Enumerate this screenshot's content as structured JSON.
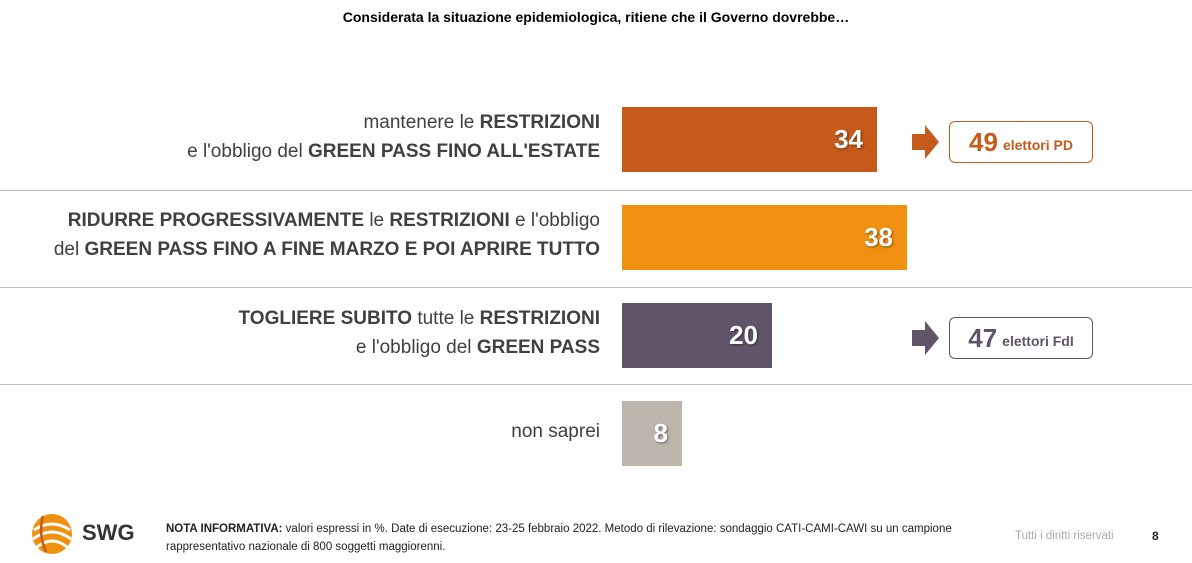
{
  "header": {
    "title": "Considerata la situazione epidemiologica, ritiene che il Governo dovrebbe…"
  },
  "chart_data": {
    "type": "bar",
    "orientation": "horizontal",
    "title": "Considerata la situazione epidemiologica, ritiene che il Governo dovrebbe…",
    "xlim": [
      0,
      100
    ],
    "grid": false,
    "categories": [
      "mantenere le RESTRIZIONI e l'obbligo del GREEN PASS FINO ALL'ESTATE",
      "RIDURRE PROGRESSIVAMENTE le RESTRIZIONI e l'obbligo del GREEN PASS FINO A FINE MARZO E POI APRIRE TUTTO",
      "TOGLIERE SUBITO tutte le RESTRIZIONI e l'obbligo del GREEN PASS",
      "non saprei"
    ],
    "values": [
      34,
      38,
      20,
      8
    ],
    "labels": [
      "34",
      "38",
      "20",
      "8"
    ],
    "colors": [
      "#c55a1a",
      "#f0900f",
      "#5f5468",
      "#bdb5ac"
    ],
    "annotations": [
      {
        "row": 0,
        "value": "49",
        "text": "elettori PD",
        "color": "#c55a1a"
      },
      {
        "row": 2,
        "value": "47",
        "text": "elettori FdI",
        "color": "#5f5468"
      }
    ]
  },
  "rows": [
    {
      "line1": [
        {
          "t": "mantenere le ",
          "b": false
        },
        {
          "t": "RESTRIZIONI",
          "b": true
        }
      ],
      "line2": [
        {
          "t": "e l'obbligo del ",
          "b": false
        },
        {
          "t": "GREEN PASS FINO ALL'ESTATE",
          "b": true
        }
      ]
    },
    {
      "line1": [
        {
          "t": "RIDURRE PROGRESSIVAMENTE",
          "b": true
        },
        {
          "t": " le ",
          "b": false
        },
        {
          "t": "RESTRIZIONI",
          "b": true
        },
        {
          "t": " e l'obbligo",
          "b": false
        }
      ],
      "line2": [
        {
          "t": "del ",
          "b": false
        },
        {
          "t": "GREEN PASS FINO A FINE MARZO E POI APRIRE TUTTO",
          "b": true
        }
      ]
    },
    {
      "line1": [
        {
          "t": "TOGLIERE SUBITO",
          "b": true
        },
        {
          "t": " tutte le ",
          "b": false
        },
        {
          "t": "RESTRIZIONI",
          "b": true
        }
      ],
      "line2": [
        {
          "t": "e l'obbligo del ",
          "b": false
        },
        {
          "t": "GREEN PASS",
          "b": true
        }
      ]
    },
    {
      "line1": [
        {
          "t": "non saprei",
          "b": false
        }
      ],
      "line2": []
    }
  ],
  "footer": {
    "logo_text": "SWG",
    "note_label": "NOTA INFORMATIVA:",
    "note_text": " valori espressi in %. Date di esecuzione: 23-25 febbraio 2022. Metodo di rilevazione: sondaggio CATI-CAMI-CAWI su un campione rappresentativo nazionale di 800 soggetti maggiorenni.",
    "rights": "Tutti i diritti riservati",
    "page_number": "8"
  },
  "colors": {
    "accent_orange": "#f0900f",
    "dark_orange": "#c55a1a",
    "purple_gray": "#5f5468",
    "beige_gray": "#bdb5ac"
  }
}
